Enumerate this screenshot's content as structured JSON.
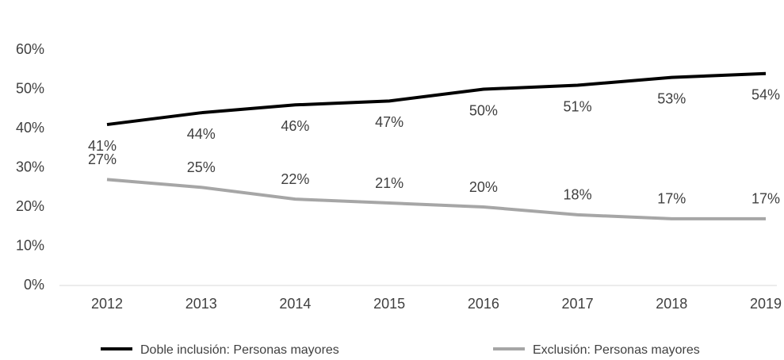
{
  "chart_data": {
    "type": "line",
    "categories": [
      "2012",
      "2013",
      "2014",
      "2015",
      "2016",
      "2017",
      "2018",
      "2019"
    ],
    "series": [
      {
        "name": "Doble inclusión: Personas mayores",
        "color": "#000000",
        "values": [
          41,
          44,
          46,
          47,
          50,
          51,
          53,
          54
        ],
        "value_labels": [
          "41%",
          "44%",
          "46%",
          "47%",
          "50%",
          "51%",
          "53%",
          "54%"
        ]
      },
      {
        "name": "Exclusión: Personas mayores",
        "color": "#a6a6a6",
        "values": [
          27,
          25,
          22,
          21,
          20,
          18,
          17,
          17
        ],
        "value_labels": [
          "27%",
          "25%",
          "22%",
          "21%",
          "20%",
          "18%",
          "17%",
          "17%"
        ]
      }
    ],
    "ylim": [
      0,
      60
    ],
    "yticks": [
      {
        "value": 0,
        "label": "0%"
      },
      {
        "value": 10,
        "label": "10%"
      },
      {
        "value": 20,
        "label": "20%"
      },
      {
        "value": 30,
        "label": "30%"
      },
      {
        "value": 40,
        "label": "40%"
      },
      {
        "value": 50,
        "label": "50%"
      },
      {
        "value": 60,
        "label": "60%"
      }
    ],
    "grid": false,
    "legend": "bottom"
  }
}
